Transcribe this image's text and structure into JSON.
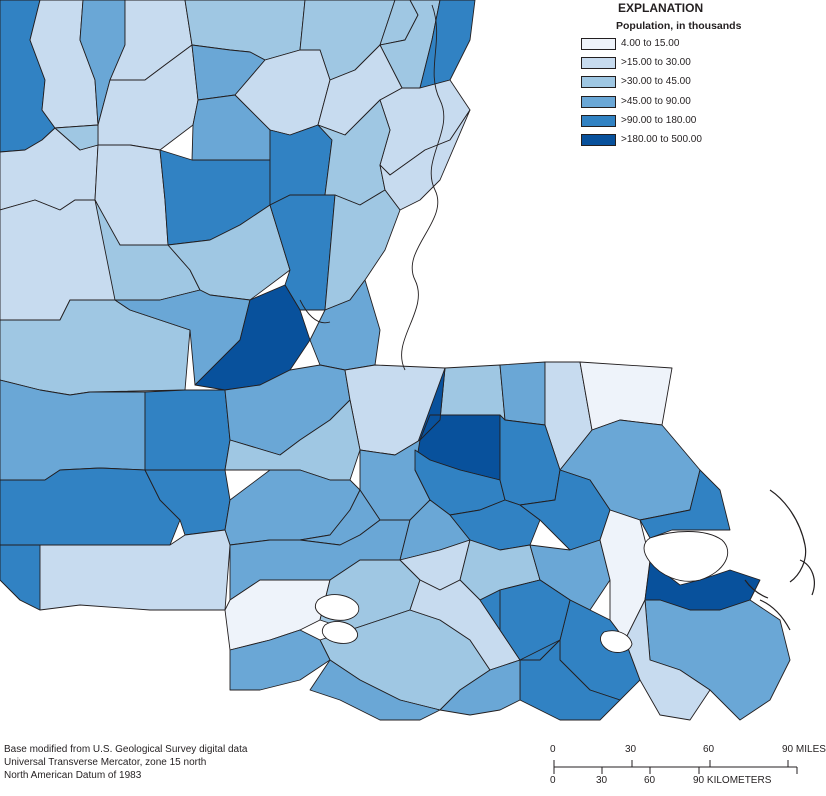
{
  "legend": {
    "title": "EXPLANATION",
    "subtitle": "Population, in thousands",
    "classes": [
      {
        "label": "4.00 to 15.00",
        "color": "#eef3fa"
      },
      {
        "label": ">15.00 to 30.00",
        "color": "#c7dbef"
      },
      {
        "label": ">30.00 to 45.00",
        "color": "#9fc7e3"
      },
      {
        "label": ">45.00 to 90.00",
        "color": "#6aa7d6"
      },
      {
        "label": ">90.00 to 180.00",
        "color": "#3182c3"
      },
      {
        "label": ">180.00 to 500.00",
        "color": "#08519c"
      }
    ]
  },
  "credits": {
    "line1": "Base modified from U.S. Geological Survey digital data",
    "line2": "Universal Transverse Mercator, zone 15 north",
    "line3": "North American Datum of 1983"
  },
  "scale_bar": {
    "miles_ticks": [
      "0",
      "30",
      "60",
      "90 MILES"
    ],
    "km_ticks": [
      "0",
      "30",
      "60",
      "90 KILOMETERS"
    ]
  },
  "map": {
    "parish_classes": [
      4,
      1,
      3,
      1,
      2,
      2,
      2,
      2,
      4,
      1,
      3,
      1,
      3,
      1,
      1,
      1,
      1,
      2,
      4,
      4,
      2,
      1,
      1,
      2,
      2,
      4,
      2,
      2,
      3,
      5,
      3,
      3,
      4,
      3,
      1,
      2,
      3,
      1,
      0,
      5,
      4,
      4,
      2,
      3,
      4,
      4,
      3,
      3,
      3,
      1,
      3,
      0,
      3,
      4,
      4,
      2,
      1,
      2,
      3,
      0,
      4,
      5,
      3,
      2,
      1,
      4,
      4,
      4,
      4,
      3,
      3,
      3,
      1,
      4
    ]
  }
}
